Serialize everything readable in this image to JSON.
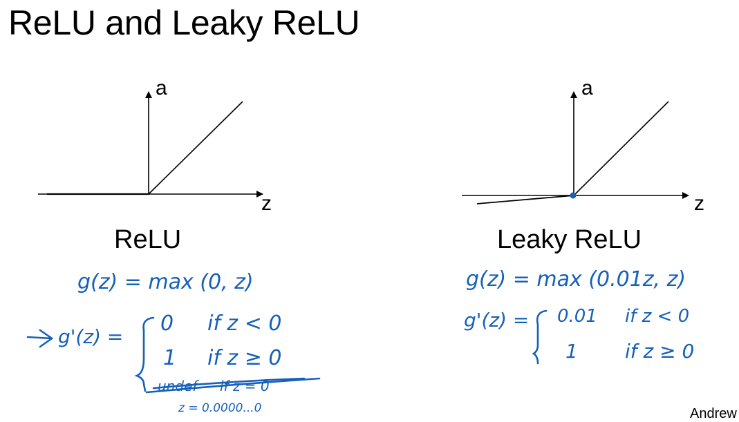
{
  "slide": {
    "title": "ReLU and Leaky ReLU",
    "author": "Andrew"
  },
  "colors": {
    "ink": "#000000",
    "handwriting": "#1560b8"
  },
  "left_panel": {
    "y_axis_label": "a",
    "x_axis_label": "z",
    "caption": "ReLU",
    "formula": "g(z) = max (0, z)",
    "derivative_prefix": "g'(z) =",
    "cases": [
      {
        "value": "0",
        "condition": "if z < 0"
      },
      {
        "value": "1",
        "condition": "if z ≥ 0"
      },
      {
        "value": "undef",
        "condition": "if z = 0"
      }
    ],
    "note": "z = 0.0000...0"
  },
  "right_panel": {
    "y_axis_label": "a",
    "x_axis_label": "z",
    "caption": "Leaky ReLU",
    "formula": "g(z) = max (0.01z, z)",
    "derivative_prefix": "g'(z) =",
    "cases": [
      {
        "value": "0.01",
        "condition": "if z < 0"
      },
      {
        "value": "1",
        "condition": "if z ≥ 0"
      }
    ]
  }
}
